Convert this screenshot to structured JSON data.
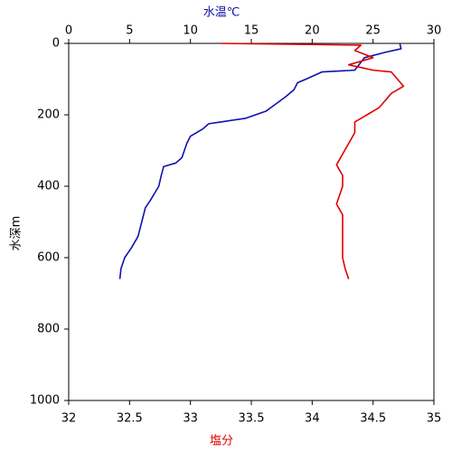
{
  "chart_data": {
    "type": "line",
    "xlabel": "塩分",
    "x2label": "水温℃",
    "ylabel": "水深m",
    "xlim": [
      32,
      35
    ],
    "xticks": [
      32,
      32.5,
      33,
      33.5,
      34,
      34.5,
      35
    ],
    "x2lim": [
      0,
      30
    ],
    "x2ticks": [
      0,
      5,
      10,
      15,
      20,
      25,
      30
    ],
    "ylim": [
      0,
      1000
    ],
    "yticks": [
      0,
      200,
      400,
      600,
      800,
      1000
    ],
    "y_inverted": true,
    "series": [
      {
        "color": "#1010b0",
        "axis": "x2",
        "x": [
          27.2,
          27.3,
          26.0,
          24.3,
          23.5,
          20.8,
          19.5,
          18.8,
          18.5,
          17.8,
          17.0,
          16.2,
          14.5,
          12.5,
          11.5,
          11.0,
          10.0,
          9.7,
          9.5,
          9.3,
          8.8,
          7.8,
          7.6,
          7.4,
          6.7,
          6.3,
          6.0,
          5.7,
          5.2,
          4.6,
          4.3,
          4.2
        ],
        "y": [
          0,
          15,
          25,
          40,
          75,
          80,
          100,
          110,
          130,
          150,
          170,
          190,
          210,
          220,
          225,
          240,
          260,
          280,
          300,
          320,
          335,
          345,
          370,
          400,
          440,
          460,
          500,
          540,
          570,
          600,
          630,
          660
        ]
      },
      {
        "color": "#e00000",
        "axis": "x",
        "x": [
          33.25,
          34.4,
          34.35,
          34.5,
          34.3,
          34.5,
          34.65,
          34.7,
          34.75,
          34.65,
          34.6,
          34.55,
          34.45,
          34.35,
          34.35,
          34.3,
          34.25,
          34.2,
          34.25,
          34.25,
          34.2,
          34.25,
          34.25,
          34.25,
          34.25,
          34.27,
          34.3
        ],
        "y": [
          0,
          5,
          20,
          40,
          60,
          75,
          80,
          100,
          120,
          140,
          160,
          180,
          200,
          220,
          250,
          280,
          310,
          340,
          370,
          400,
          450,
          480,
          520,
          560,
          600,
          630,
          660
        ]
      }
    ]
  }
}
